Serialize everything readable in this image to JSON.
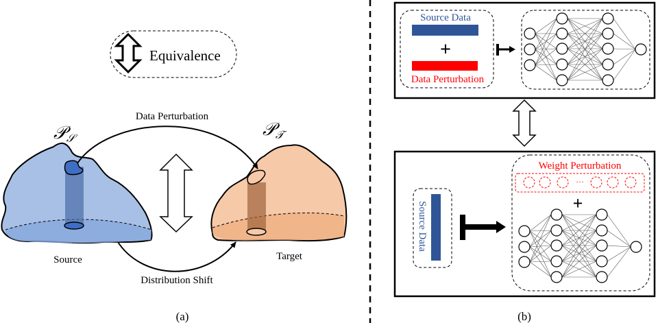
{
  "panel_a": {
    "legend_label": "Equivalence",
    "source_dist_label": "𝒫",
    "source_dist_sub": "𝒮",
    "target_dist_label": "𝒫",
    "target_dist_sub": "𝒯",
    "top_arc_label": "Data Perturbation",
    "bottom_arc_label": "Distribution Shift",
    "source_label": "Source",
    "target_label": "Target",
    "caption": "(a)",
    "colors": {
      "source": "#a9c0e6",
      "source_dark": "#3f6fc4",
      "target": "#f6c9a8",
      "target_dark": "#b57a55"
    }
  },
  "panel_b": {
    "top": {
      "source_label": "Source Data",
      "plus": "+",
      "perturb_label": "Data Perturbation"
    },
    "bottom": {
      "source_label": "Source Data",
      "weight_label": "Weight Perturbation",
      "ellipsis": "···",
      "plus": "+"
    },
    "caption": "(b)",
    "colors": {
      "source_bar": "#2f5597",
      "perturb": "#ff0000"
    }
  }
}
